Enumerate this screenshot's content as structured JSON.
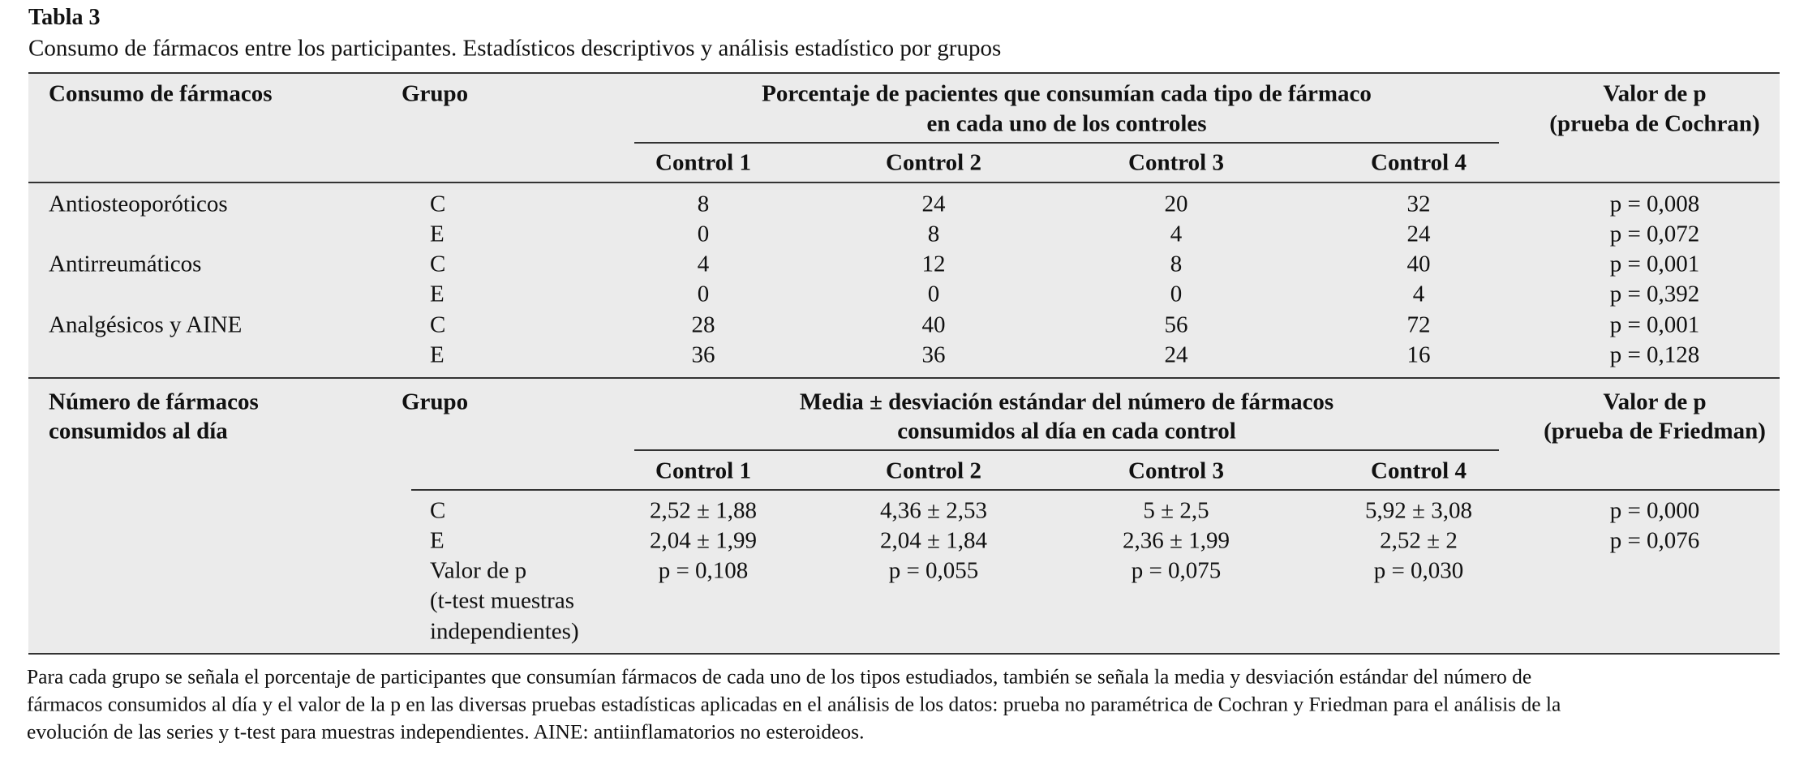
{
  "title": "Tabla 3",
  "caption": "Consumo de fármacos entre los participantes. Estadísticos descriptivos y análisis estadístico por grupos",
  "section1": {
    "col_header": "Consumo de fármacos",
    "group_header": "Grupo",
    "span_header": [
      "Porcentaje de pacientes que consumían cada tipo de fármaco",
      "en cada uno de los controles"
    ],
    "p_header": [
      "Valor de p",
      "(prueba de Cochran)"
    ],
    "controls": [
      "Control 1",
      "Control 2",
      "Control 3",
      "Control 4"
    ],
    "drugs": [
      {
        "name": "Antiosteoporóticos",
        "rows": [
          {
            "group": "C",
            "values": [
              "8",
              "24",
              "20",
              "32"
            ],
            "p": "p = 0,008"
          },
          {
            "group": "E",
            "values": [
              "0",
              "8",
              "4",
              "24"
            ],
            "p": "p = 0,072"
          }
        ]
      },
      {
        "name": "Antirreumáticos",
        "rows": [
          {
            "group": "C",
            "values": [
              "4",
              "12",
              "8",
              "40"
            ],
            "p": "p = 0,001"
          },
          {
            "group": "E",
            "values": [
              "0",
              "0",
              "0",
              "4"
            ],
            "p": "p = 0,392"
          }
        ]
      },
      {
        "name": "Analgésicos y AINE",
        "rows": [
          {
            "group": "C",
            "values": [
              "28",
              "40",
              "56",
              "72"
            ],
            "p": "p = 0,001"
          },
          {
            "group": "E",
            "values": [
              "36",
              "36",
              "24",
              "16"
            ],
            "p": "p = 0,128"
          }
        ]
      }
    ]
  },
  "section2": {
    "col_header": [
      "Número de fármacos",
      "consumidos al día"
    ],
    "group_header": "Grupo",
    "span_header": [
      "Media ± desviación estándar del número de fármacos",
      "consumidos al día en cada control"
    ],
    "p_header": [
      "Valor de p",
      "(prueba de Friedman)"
    ],
    "controls": [
      "Control 1",
      "Control 2",
      "Control 3",
      "Control 4"
    ],
    "rows": [
      {
        "group": "C",
        "values": [
          "2,52 ± 1,88",
          "4,36 ± 2,53",
          "5 ± 2,5",
          "5,92 ± 3,08"
        ],
        "p": "p = 0,000"
      },
      {
        "group": "E",
        "values": [
          "2,04 ± 1,99",
          "2,04 ± 1,84",
          "2,36 ± 1,99",
          "2,52 ± 2"
        ],
        "p": "p = 0,076"
      }
    ],
    "ttest": {
      "label": [
        "Valor de p",
        "(t-test muestras",
        "independientes)"
      ],
      "values": [
        "p = 0,108",
        "p = 0,055",
        "p = 0,075",
        "p = 0,030"
      ]
    }
  },
  "footnote": [
    "Para cada grupo se señala el porcentaje de participantes que consumían fármacos de cada uno de los tipos estudiados, también se señala la media y desviación estándar del número de",
    "fármacos consumidos al día y el valor de la p en las diversas pruebas estadísticas aplicadas en el análisis de los datos: prueba no paramétrica de Cochran y Friedman para el análisis de la",
    "evolución de las series y t-test para muestras independientes. AINE: antiinflamatorios no esteroideos."
  ]
}
